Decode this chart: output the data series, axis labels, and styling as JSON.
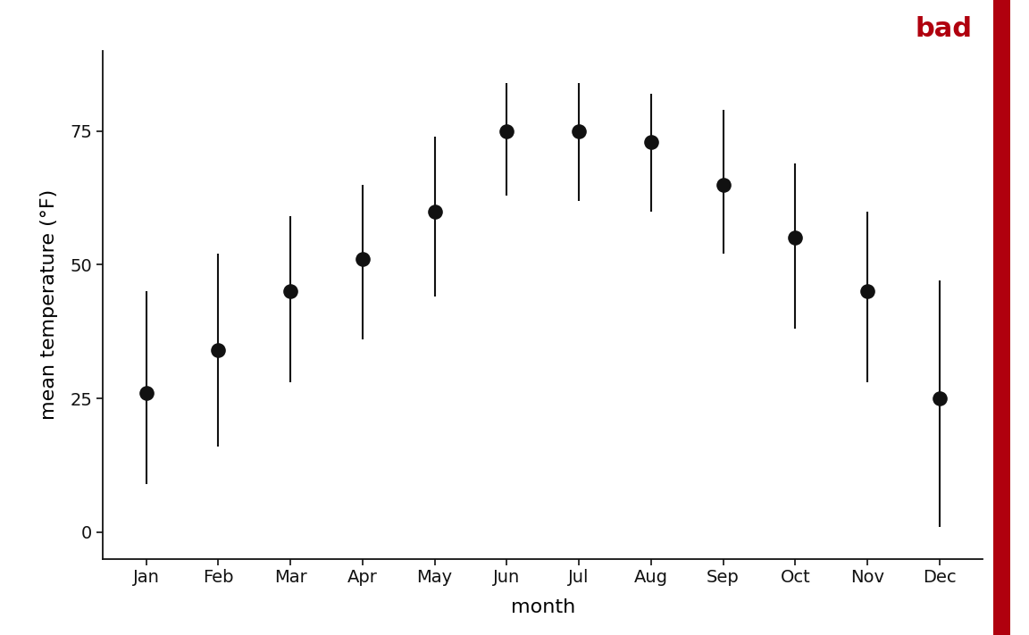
{
  "months": [
    "Jan",
    "Feb",
    "Mar",
    "Apr",
    "May",
    "Jun",
    "Jul",
    "Aug",
    "Sep",
    "Oct",
    "Nov",
    "Dec"
  ],
  "means": [
    26,
    34,
    45,
    51,
    60,
    75,
    75,
    73,
    65,
    55,
    45,
    25
  ],
  "lower": [
    9,
    16,
    28,
    36,
    44,
    63,
    62,
    60,
    52,
    38,
    28,
    1
  ],
  "upper": [
    45,
    52,
    59,
    65,
    74,
    84,
    84,
    82,
    79,
    69,
    60,
    47
  ],
  "ylabel": "mean temperature (°F)",
  "xlabel": "month",
  "ylim": [
    -5,
    90
  ],
  "yticks": [
    0,
    25,
    50,
    75
  ],
  "background_color": "#ffffff",
  "dot_color": "#111111",
  "line_color": "#111111",
  "dot_size": 120,
  "bad_label": "bad",
  "bad_color": "#b0000e",
  "spine_color": "#111111",
  "red_bar_color": "#b0000e",
  "red_bar_width": 0.017
}
